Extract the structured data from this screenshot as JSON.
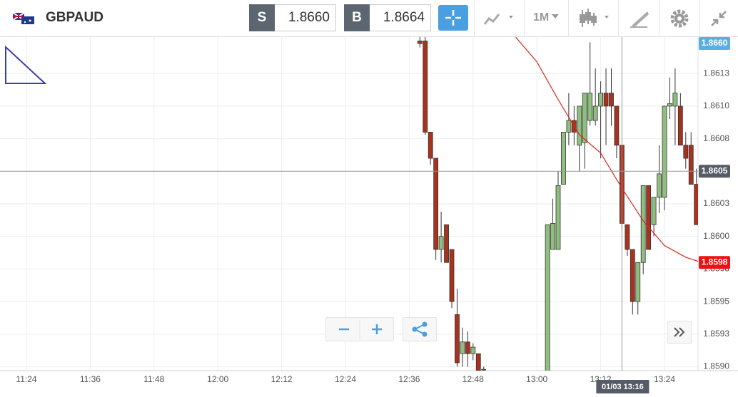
{
  "header": {
    "symbol": "GBPAUD",
    "sell_label": "S",
    "sell_price": "1.8660",
    "buy_label": "B",
    "buy_price": "1.8664",
    "timeframe": "1M"
  },
  "chart_data": {
    "type": "candlestick",
    "x": [
      "12:38",
      "12:39",
      "12:40",
      "12:41",
      "12:42",
      "12:43",
      "12:44",
      "12:45",
      "12:46",
      "12:47",
      "12:48",
      "12:49",
      "12:50",
      "13:02",
      "13:03",
      "13:04",
      "13:05",
      "13:06",
      "13:07",
      "13:08",
      "13:09",
      "13:10",
      "13:11",
      "13:12",
      "13:13",
      "13:14",
      "13:15",
      "13:16",
      "13:17",
      "13:18",
      "13:19",
      "13:20",
      "13:21",
      "13:22",
      "13:23",
      "13:24",
      "13:25",
      "13:26",
      "13:27",
      "13:28",
      "13:29",
      "13:30"
    ],
    "open": [
      1.8615,
      1.8615,
      1.8608,
      1.8606,
      1.8599,
      1.86009,
      1.8599,
      1.8594,
      1.8591,
      1.85919,
      1.8591,
      1.8591,
      1.85898,
      1.8589,
      1.8599,
      1.8599,
      1.8604,
      1.8608,
      1.86089,
      1.8607,
      1.86072,
      1.86089,
      1.86089,
      1.861,
      1.8611,
      1.8611,
      1.861,
      1.8607,
      1.86009,
      1.8599,
      1.8595,
      1.8598,
      1.86039,
      1.86009,
      1.8603,
      1.8603,
      1.861,
      1.861,
      1.861,
      1.8607,
      1.8607,
      1.8604
    ],
    "high": [
      1.8616,
      1.8616,
      1.8608,
      1.8606,
      1.86019,
      1.86009,
      1.8599,
      1.8596,
      1.8593,
      1.85927,
      1.85918,
      1.8591,
      1.859,
      1.86009,
      1.86029,
      1.8605,
      1.8608,
      1.8611,
      1.861,
      1.861,
      1.8611,
      1.86149,
      1.86129,
      1.86119,
      1.86129,
      1.86129,
      1.861,
      1.8607,
      1.86009,
      1.8599,
      1.8598,
      1.86039,
      1.86039,
      1.8603,
      1.8607,
      1.861,
      1.86122,
      1.86129,
      1.8611,
      1.8608,
      1.8608,
      1.86052
    ],
    "low": [
      1.86145,
      1.86078,
      1.86055,
      1.85982,
      1.8598,
      1.8598,
      1.85945,
      1.859,
      1.859,
      1.859,
      1.85905,
      1.8589,
      1.85895,
      1.8588,
      1.8599,
      1.8599,
      1.8604,
      1.8607,
      1.8607,
      1.8605,
      1.86052,
      1.86085,
      1.86085,
      1.8606,
      1.8607,
      1.86085,
      1.8606,
      1.86005,
      1.85985,
      1.8594,
      1.8594,
      1.85971,
      1.8599,
      1.86,
      1.86018,
      1.8602,
      1.8609,
      1.8607,
      1.8607,
      1.86052,
      1.8604,
      1.86009
    ],
    "close": [
      1.86148,
      1.8608,
      1.8606,
      1.8599,
      1.86,
      1.8598,
      1.8595,
      1.85903,
      1.85919,
      1.8591,
      1.85915,
      1.85897,
      1.85898,
      1.86009,
      1.8601,
      1.86039,
      1.8608,
      1.86089,
      1.8608,
      1.861,
      1.8611,
      1.8611,
      1.861,
      1.8611,
      1.861,
      1.861,
      1.8607,
      1.8601,
      1.8599,
      1.8595,
      1.8598,
      1.86039,
      1.8599,
      1.8603,
      1.86048,
      1.861,
      1.86102,
      1.8611,
      1.8607,
      1.8606,
      1.8604,
      1.86009
    ],
    "up_color": "#8fbf7f",
    "down_color": "#a8321e",
    "series": [
      {
        "type": "line",
        "color": "#d9251c",
        "x": [
          "12:56",
          "13:00",
          "13:04",
          "13:08",
          "13:12",
          "13:16",
          "13:20",
          "13:24",
          "13:28",
          "13:31"
        ],
        "values": [
          1.86153,
          1.86134,
          1.86105,
          1.86078,
          1.86064,
          1.86037,
          1.86012,
          1.85993,
          1.85984,
          1.8598
        ]
      }
    ],
    "ylim": [
      1.85897,
      1.86153
    ],
    "yticks": [
      {
        "value": 1.859,
        "label": "1.8590"
      },
      {
        "value": 1.85925,
        "label": "1.8593"
      },
      {
        "value": 1.8595,
        "label": "1.8595"
      },
      {
        "value": 1.85975,
        "label": "1.8598"
      },
      {
        "value": 1.86,
        "label": "1.8600"
      },
      {
        "value": 1.86025,
        "label": "1.8603"
      },
      {
        "value": 1.8605,
        "label": "1.8605"
      },
      {
        "value": 1.86075,
        "label": "1.8608"
      },
      {
        "value": 1.861,
        "label": "1.8610"
      },
      {
        "value": 1.86125,
        "label": "1.8613"
      }
    ],
    "xticks": [
      "11:24",
      "11:36",
      "11:48",
      "12:00",
      "12:12",
      "12:24",
      "12:36",
      "12:48",
      "13:00",
      "13:12",
      "13:24"
    ],
    "grid": true,
    "price_tags": [
      {
        "value": 1.866,
        "label": "1.8660",
        "color": "#5aaee0"
      },
      {
        "value": 1.8605,
        "label": "1.8605",
        "color": "#555c66"
      },
      {
        "value": 1.8598,
        "label": "1.8598",
        "color": "#ee1111"
      }
    ],
    "crosshair": {
      "x": "13:16",
      "y": 1.8605,
      "label": "01/03 13:16"
    }
  }
}
